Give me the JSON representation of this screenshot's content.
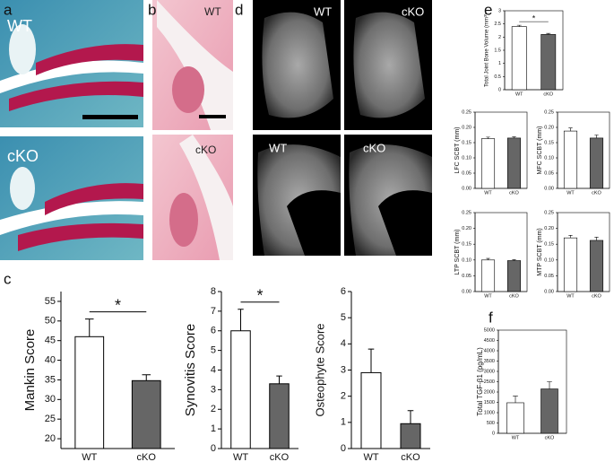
{
  "figure": {
    "panels": [
      "a",
      "b",
      "c",
      "d",
      "e",
      "f"
    ],
    "image_labels": [
      "WT",
      "cKO",
      "WT",
      "cKO",
      "WT",
      "cKO",
      "WT",
      "cKO"
    ]
  },
  "chart_data": [
    {
      "type": "bar",
      "ylabel": "Mankin Score",
      "categories": [
        "WT",
        "cKO"
      ],
      "values": [
        46,
        34.8
      ],
      "errors": [
        4.5,
        1.5
      ],
      "colors": [
        "#ffffff",
        "#666666"
      ],
      "ylim": [
        17.5,
        57.5
      ],
      "yticks": [
        20,
        25,
        30,
        35,
        40,
        45,
        50,
        55
      ],
      "significance": "*",
      "frame": false
    },
    {
      "type": "bar",
      "ylabel": "Synovitis Score",
      "categories": [
        "WT",
        "cKO"
      ],
      "values": [
        6.0,
        3.3
      ],
      "errors": [
        1.1,
        0.4
      ],
      "colors": [
        "#ffffff",
        "#666666"
      ],
      "ylim": [
        0,
        8
      ],
      "yticks": [
        0,
        1,
        2,
        3,
        4,
        5,
        6,
        7,
        8
      ],
      "significance": "*",
      "frame": false
    },
    {
      "type": "bar",
      "ylabel": "Osteophyte Score",
      "categories": [
        "WT",
        "cKO"
      ],
      "values": [
        2.9,
        0.95
      ],
      "errors": [
        0.9,
        0.5
      ],
      "colors": [
        "#ffffff",
        "#666666"
      ],
      "ylim": [
        0,
        6
      ],
      "yticks": [
        0,
        1,
        2,
        3,
        4,
        5,
        6
      ],
      "frame": false
    },
    {
      "type": "bar",
      "ylabel": "Total Joint Bone Volume (mm³)",
      "categories": [
        "WT",
        "cKO"
      ],
      "values": [
        2.4,
        2.1
      ],
      "errors": [
        0.05,
        0.04
      ],
      "colors": [
        "#ffffff",
        "#666666"
      ],
      "ylim": [
        0,
        3
      ],
      "yticks": [
        0,
        0.5,
        1,
        1.5,
        2,
        2.5,
        3
      ],
      "significance": "*",
      "frame": true
    },
    {
      "type": "bar",
      "ylabel": "LFC SCBT (mm)",
      "categories": [
        "WT",
        "cKO"
      ],
      "values": [
        0.163,
        0.165
      ],
      "errors": [
        0.005,
        0.004
      ],
      "colors": [
        "#ffffff",
        "#666666"
      ],
      "ylim": [
        0,
        0.25
      ],
      "yticks": [
        {
          "value": 0,
          "label": "0.00"
        },
        0.05,
        {
          "value": 0.1,
          "label": "0.10"
        },
        0.15,
        {
          "value": 0.2,
          "label": "0.20"
        },
        0.25
      ],
      "frame": true
    },
    {
      "type": "bar",
      "ylabel": "MFC SCBT (mm)",
      "categories": [
        "WT",
        "cKO"
      ],
      "values": [
        0.188,
        0.165
      ],
      "errors": [
        0.01,
        0.01
      ],
      "colors": [
        "#ffffff",
        "#666666"
      ],
      "ylim": [
        0,
        0.25
      ],
      "yticks": [
        {
          "value": 0,
          "label": "0.00"
        },
        0.05,
        {
          "value": 0.1,
          "label": "0.10"
        },
        0.15,
        {
          "value": 0.2,
          "label": "0.20"
        },
        0.25
      ],
      "frame": true
    },
    {
      "type": "bar",
      "ylabel": "LTP SCBT (mm)",
      "categories": [
        "WT",
        "cKO"
      ],
      "values": [
        0.1,
        0.098
      ],
      "errors": [
        0.005,
        0.003
      ],
      "colors": [
        "#ffffff",
        "#666666"
      ],
      "ylim": [
        0,
        0.25
      ],
      "yticks": [
        {
          "value": 0,
          "label": "0.00"
        },
        0.05,
        {
          "value": 0.1,
          "label": "0.10"
        },
        0.15,
        {
          "value": 0.2,
          "label": "0.20"
        },
        0.25
      ],
      "frame": true
    },
    {
      "type": "bar",
      "ylabel": "MTP SCBT (mm)",
      "categories": [
        "WT",
        "cKO"
      ],
      "values": [
        0.17,
        0.162
      ],
      "errors": [
        0.008,
        0.01
      ],
      "colors": [
        "#ffffff",
        "#666666"
      ],
      "ylim": [
        0,
        0.25
      ],
      "yticks": [
        {
          "value": 0,
          "label": "0.00"
        },
        0.05,
        {
          "value": 0.1,
          "label": "0.10"
        },
        0.15,
        {
          "value": 0.2,
          "label": "0.20"
        },
        0.25
      ],
      "frame": true
    },
    {
      "type": "bar",
      "ylabel": "Total TGF-β1 (pg/mL)",
      "categories": [
        "WT",
        "cKO"
      ],
      "values": [
        1480,
        2150
      ],
      "errors": [
        320,
        350
      ],
      "colors": [
        "#ffffff",
        "#666666"
      ],
      "ylim": [
        0,
        5000
      ],
      "yticks": [
        0,
        500,
        1000,
        1500,
        2000,
        2500,
        3000,
        3500,
        4000,
        4500,
        5000
      ],
      "frame": true
    }
  ]
}
